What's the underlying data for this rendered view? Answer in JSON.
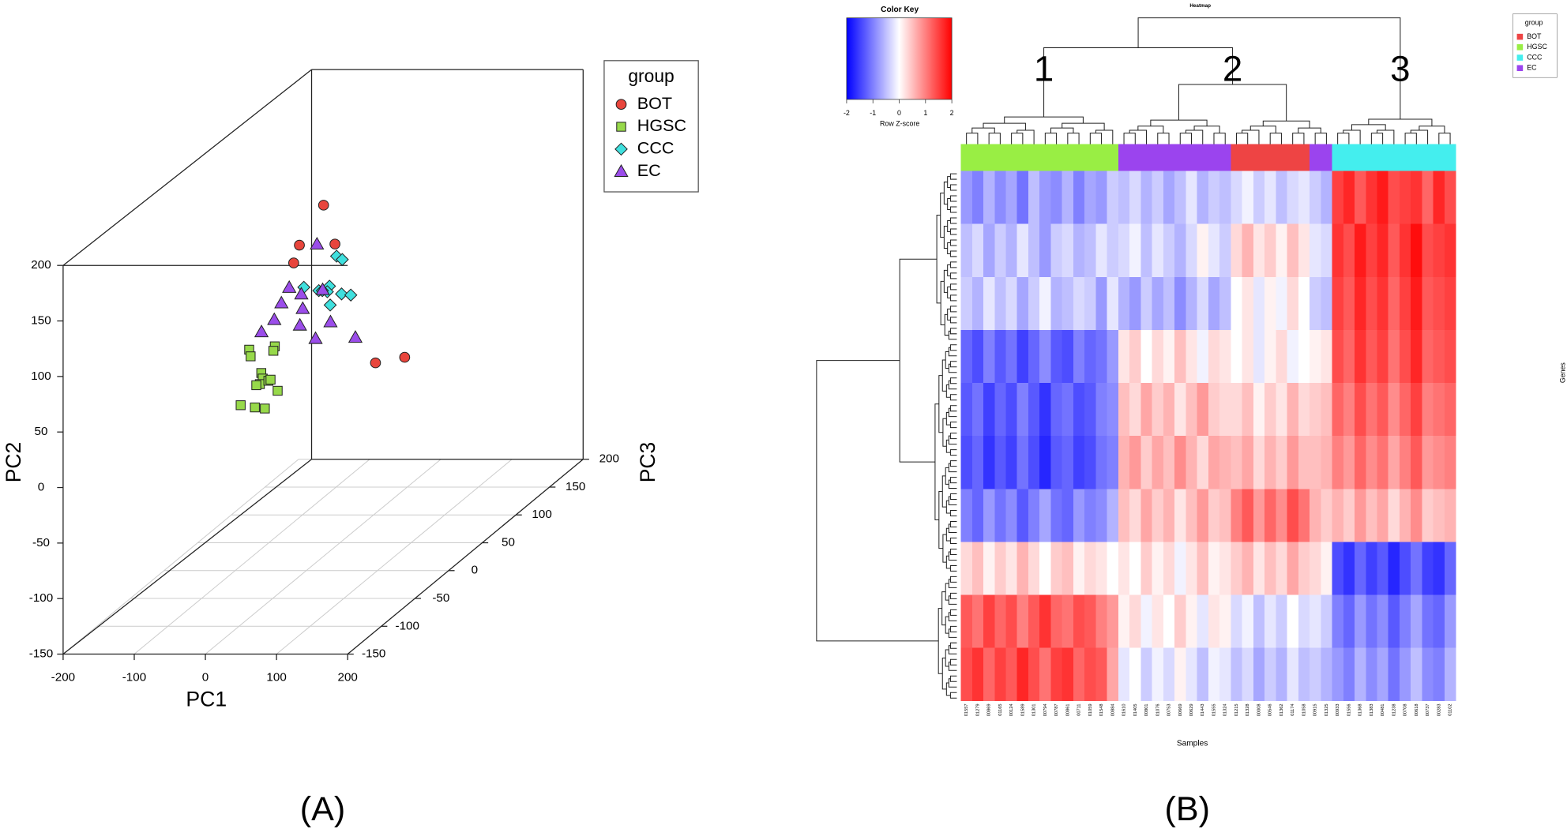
{
  "chart_data": [
    {
      "type": "scatter3d",
      "panel_label": "(A)",
      "xlabel": "PC1",
      "ylabel": "PC2",
      "zlabel": "PC3",
      "xlim": [
        -200,
        200
      ],
      "xticks": [
        -200,
        -100,
        0,
        100,
        200
      ],
      "ylim": [
        -150,
        200
      ],
      "yticks": [
        -150,
        -100,
        -50,
        0,
        50,
        100,
        150,
        200
      ],
      "zlim": [
        -150,
        200
      ],
      "zticks": [
        -150,
        -100,
        -50,
        0,
        50,
        100,
        150,
        200
      ],
      "grid": true,
      "legend_title": "group",
      "legend": "upper right",
      "series": [
        {
          "name": "BOT",
          "color": "#e8453c",
          "marker": "circle",
          "x": [
            -23,
            -57,
            -7,
            -65,
            50,
            91
          ],
          "y": [
            154,
            118,
            119,
            102,
            12,
            17
          ],
          "z": [
            50,
            50,
            50,
            50,
            50,
            50
          ]
        },
        {
          "name": "HGSC",
          "color": "#97d94a",
          "marker": "square",
          "x": [
            -33,
            -31,
            3,
            1,
            -16,
            -14,
            -18,
            -6,
            -23,
            -3,
            7,
            -45,
            -25,
            -11
          ],
          "y": [
            74,
            68,
            77,
            73,
            53,
            48,
            43,
            46,
            42,
            47,
            37,
            24,
            22,
            21
          ],
          "z": [
            -50,
            -50,
            -50,
            -50,
            -50,
            -50,
            -50,
            -50,
            -50,
            -50,
            -50,
            -50,
            -50,
            -50
          ]
        },
        {
          "name": "CCC",
          "color": "#3fe0de",
          "marker": "diamond",
          "x": [
            -52,
            -44,
            -98,
            -77,
            -62,
            -65,
            -45,
            -32,
            -61,
            -72
          ],
          "y": [
            83,
            80,
            55,
            52,
            56,
            51,
            49,
            48,
            39,
            52
          ],
          "z": [
            100,
            100,
            100,
            100,
            100,
            100,
            100,
            100,
            100,
            100
          ]
        },
        {
          "name": "EC",
          "color": "#9b4dea",
          "marker": "triangle",
          "x": [
            15,
            -24,
            23,
            -35,
            -7,
            -63,
            -45,
            -5,
            -9,
            34,
            69,
            13
          ],
          "y": [
            144,
            105,
            103,
            91,
            99,
            65,
            76,
            86,
            71,
            74,
            60,
            59
          ],
          "z": [
            0,
            0,
            0,
            0,
            0,
            0,
            0,
            0,
            0,
            0,
            0,
            0
          ]
        }
      ]
    },
    {
      "type": "heatmap",
      "panel_label": "(B)",
      "title": "Heatmap",
      "xlabel": "Samples",
      "ylabel": "Genes",
      "colorbar_title": "Color Key",
      "colorbar_label": "Row Z-score",
      "color_range": [
        -2,
        2
      ],
      "colorbar_ticks": [
        -2,
        -1,
        0,
        1,
        2
      ],
      "colors": [
        "#0000ff",
        "#ffffff",
        "#ff0000"
      ],
      "cluster_labels": [
        "1",
        "2",
        "3"
      ],
      "legend_title": "group",
      "groups": [
        {
          "name": "BOT",
          "color": "#ee4444"
        },
        {
          "name": "HGSC",
          "color": "#99ee44"
        },
        {
          "name": "CCC",
          "color": "#44eeee"
        },
        {
          "name": "EC",
          "color": "#9b44ee"
        }
      ],
      "columns": [
        "01557",
        "01279",
        "00869",
        "01165",
        "00124",
        "01589",
        "01301",
        "00794",
        "00787",
        "00861",
        "00711",
        "01059",
        "01548",
        "00884",
        "01610",
        "01405",
        "00801",
        "01076",
        "00753",
        "00669",
        "00629",
        "01443",
        "01555",
        "01324",
        "01215",
        "01328",
        "00008",
        "00546",
        "01362",
        "01174",
        "01058",
        "00915",
        "01325",
        "00933",
        "01556",
        "01368",
        "01383",
        "00481",
        "01238",
        "00708",
        "00618",
        "00737",
        "00283",
        "01102"
      ],
      "column_groups": [
        "HGSC",
        "HGSC",
        "HGSC",
        "HGSC",
        "HGSC",
        "HGSC",
        "HGSC",
        "HGSC",
        "HGSC",
        "HGSC",
        "HGSC",
        "HGSC",
        "HGSC",
        "HGSC",
        "EC",
        "EC",
        "EC",
        "EC",
        "EC",
        "EC",
        "EC",
        "EC",
        "EC",
        "EC",
        "BOT",
        "BOT",
        "BOT",
        "BOT",
        "BOT",
        "BOT",
        "BOT",
        "EC",
        "EC",
        "CCC",
        "CCC",
        "CCC",
        "CCC",
        "CCC",
        "CCC",
        "CCC",
        "CCC",
        "CCC",
        "CCC",
        "CCC"
      ],
      "matrix": [
        [
          -0.8,
          -1.0,
          -0.6,
          -0.9,
          -0.7,
          -1.1,
          -0.5,
          -0.8,
          -0.9,
          -0.6,
          -1.0,
          -0.7,
          -0.8,
          -0.4,
          -0.5,
          -0.3,
          -0.6,
          -0.4,
          -0.7,
          -0.5,
          -0.2,
          -0.6,
          -0.4,
          -0.5,
          -0.3,
          -0.1,
          -0.4,
          -0.2,
          -0.5,
          -0.3,
          -0.2,
          -0.4,
          -0.6,
          1.5,
          1.7,
          1.3,
          1.6,
          1.8,
          1.4,
          1.5,
          1.6,
          1.2,
          1.7,
          1.4
        ],
        [
          -0.5,
          -0.3,
          -0.7,
          -0.4,
          -0.6,
          -0.2,
          -0.5,
          -0.8,
          -0.4,
          -0.3,
          -0.6,
          -0.5,
          -0.2,
          -0.4,
          -0.3,
          -0.1,
          -0.5,
          -0.2,
          -0.4,
          -0.6,
          -0.3,
          0.1,
          -0.2,
          -0.4,
          0.3,
          0.6,
          0.2,
          0.4,
          0.1,
          0.5,
          0.2,
          -0.2,
          -0.3,
          1.6,
          1.4,
          1.8,
          1.5,
          1.7,
          1.3,
          1.6,
          1.9,
          1.4,
          1.5,
          1.6
        ],
        [
          -0.4,
          -0.6,
          -0.2,
          -0.5,
          -0.3,
          -0.7,
          -0.4,
          -0.1,
          -0.6,
          -0.5,
          -0.3,
          -0.4,
          -0.8,
          -0.2,
          -0.6,
          -0.8,
          -0.4,
          -0.7,
          -0.5,
          -0.9,
          -0.6,
          -0.3,
          -0.7,
          -0.5,
          0,
          0.2,
          -0.2,
          0.1,
          -0.1,
          0.3,
          0,
          -0.4,
          -0.5,
          1.5,
          1.3,
          1.7,
          1.4,
          1.6,
          1.2,
          1.5,
          1.8,
          1.3,
          1.4,
          1.5
        ],
        [
          -1.2,
          -1.4,
          -1.0,
          -1.3,
          -1.1,
          -1.5,
          -1.2,
          -0.9,
          -1.3,
          -1.4,
          -1.0,
          -1.2,
          -1.1,
          -0.8,
          0.2,
          0.4,
          0,
          0.3,
          0.1,
          0.5,
          0.2,
          -0.1,
          0.3,
          0.2,
          0,
          0.2,
          -0.2,
          0.1,
          0.3,
          -0.1,
          0,
          0.1,
          0.2,
          1.4,
          1.2,
          1.6,
          1.3,
          1.5,
          1.1,
          1.4,
          1.7,
          1.2,
          1.3,
          1.4
        ],
        [
          -1.3,
          -1.1,
          -1.5,
          -1.2,
          -1.4,
          -1.0,
          -1.3,
          -1.6,
          -1.2,
          -1.1,
          -1.4,
          -1.3,
          -1.0,
          -0.9,
          0.5,
          0.3,
          0.7,
          0.4,
          0.6,
          0.2,
          0.5,
          0.8,
          0.4,
          0.3,
          0.3,
          0.5,
          0.1,
          0.4,
          0.2,
          0.6,
          0.3,
          0.4,
          0.5,
          1.2,
          1.0,
          1.4,
          1.1,
          1.3,
          0.9,
          1.2,
          1.5,
          1.0,
          1.1,
          1.2
        ],
        [
          -1.4,
          -1.2,
          -1.6,
          -1.3,
          -1.5,
          -1.1,
          -1.4,
          -1.7,
          -1.3,
          -1.2,
          -1.5,
          -1.4,
          -1.1,
          -1.0,
          0.6,
          0.8,
          0.4,
          0.7,
          0.5,
          0.9,
          0.6,
          0.3,
          0.7,
          0.6,
          0.5,
          0.7,
          0.3,
          0.6,
          0.4,
          0.8,
          0.5,
          0.5,
          0.6,
          1.0,
          0.8,
          1.2,
          0.9,
          1.1,
          0.7,
          1.0,
          1.3,
          0.8,
          0.9,
          1.0
        ],
        [
          -1.0,
          -1.2,
          -0.8,
          -1.1,
          -0.9,
          -1.3,
          -1.0,
          -0.7,
          -1.1,
          -1.2,
          -0.8,
          -1.0,
          -0.9,
          -0.6,
          0.5,
          0.3,
          0.7,
          0.4,
          0.6,
          0.2,
          0.5,
          0.8,
          0.4,
          0.5,
          1.0,
          1.3,
          0.8,
          1.2,
          0.9,
          1.4,
          1.1,
          0.6,
          0.4,
          0.6,
          0.4,
          0.8,
          0.5,
          0.7,
          0.3,
          0.6,
          0.9,
          0.4,
          0.5,
          0.6
        ],
        [
          0.3,
          0.5,
          0.1,
          0.4,
          0.2,
          0.6,
          0.3,
          0,
          0.4,
          0.5,
          0.1,
          0.3,
          0.2,
          0,
          0.2,
          0,
          0.4,
          0.1,
          0.3,
          -0.1,
          0.2,
          0.5,
          0.1,
          0.2,
          0.4,
          0.6,
          0.2,
          0.5,
          0.3,
          0.7,
          0.4,
          0.3,
          0.1,
          -1.4,
          -1.6,
          -1.2,
          -1.5,
          -1.3,
          -1.7,
          -1.4,
          -1.1,
          -1.5,
          -1.6,
          -1.2
        ],
        [
          1.3,
          1.1,
          1.5,
          1.2,
          1.4,
          1.0,
          1.3,
          1.6,
          1.2,
          1.1,
          1.4,
          1.3,
          1.0,
          0.8,
          0.1,
          0.3,
          -0.1,
          0.2,
          0,
          0.4,
          0.1,
          -0.2,
          0.2,
          0.1,
          -0.3,
          -0.1,
          -0.5,
          -0.2,
          -0.4,
          0,
          -0.3,
          -0.2,
          -0.4,
          -1.0,
          -1.2,
          -0.8,
          -1.1,
          -0.9,
          -1.3,
          -1.0,
          -0.7,
          -1.1,
          -1.2,
          -0.8
        ],
        [
          1.4,
          1.6,
          1.2,
          1.5,
          1.3,
          1.7,
          1.4,
          1.1,
          1.5,
          1.6,
          1.2,
          1.4,
          1.3,
          0.7,
          -0.2,
          0,
          -0.4,
          -0.1,
          -0.3,
          0.1,
          -0.2,
          -0.5,
          -0.1,
          -0.2,
          -0.5,
          -0.3,
          -0.7,
          -0.4,
          -0.6,
          -0.2,
          -0.5,
          -0.4,
          -0.6,
          -0.8,
          -1.0,
          -0.6,
          -0.9,
          -0.7,
          -1.1,
          -0.8,
          -0.5,
          -0.9,
          -1.0,
          -0.6
        ]
      ]
    }
  ]
}
